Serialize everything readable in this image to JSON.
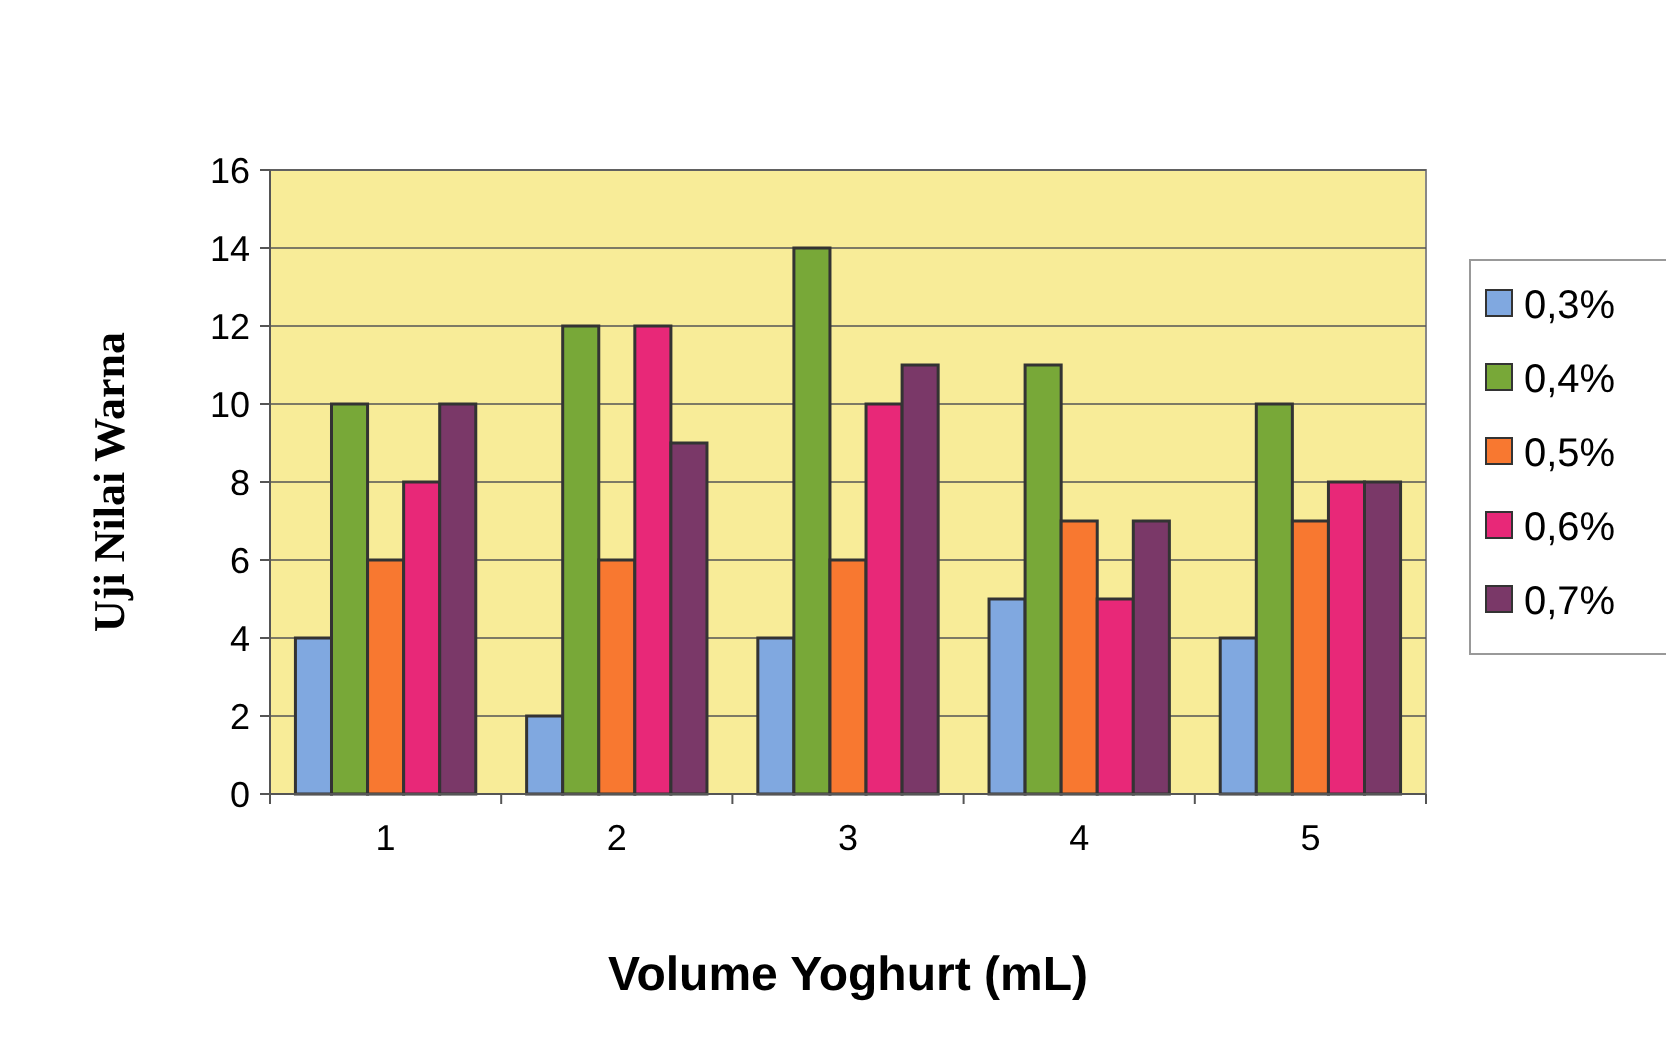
{
  "chart_data": {
    "type": "bar",
    "xlabel": "Volume Yoghurt (mL)",
    "ylabel": "Uji Nilai Warna",
    "categories": [
      "1",
      "2",
      "3",
      "4",
      "5"
    ],
    "series": [
      {
        "name": "0,3%",
        "color": "#80a8e0",
        "values": [
          4,
          2,
          4,
          5,
          4
        ]
      },
      {
        "name": "0,4%",
        "color": "#78a838",
        "values": [
          10,
          12,
          14,
          11,
          10
        ]
      },
      {
        "name": "0,5%",
        "color": "#f87830",
        "values": [
          6,
          6,
          6,
          7,
          7
        ]
      },
      {
        "name": "0,6%",
        "color": "#e82878",
        "values": [
          8,
          12,
          10,
          5,
          8
        ]
      },
      {
        "name": "0,7%",
        "color": "#7a3868",
        "values": [
          10,
          9,
          11,
          7,
          8
        ]
      }
    ],
    "ylim": [
      0,
      16
    ],
    "yticks": [
      0,
      2,
      4,
      6,
      8,
      10,
      12,
      14,
      16
    ],
    "grid": "y",
    "legend": "right"
  }
}
